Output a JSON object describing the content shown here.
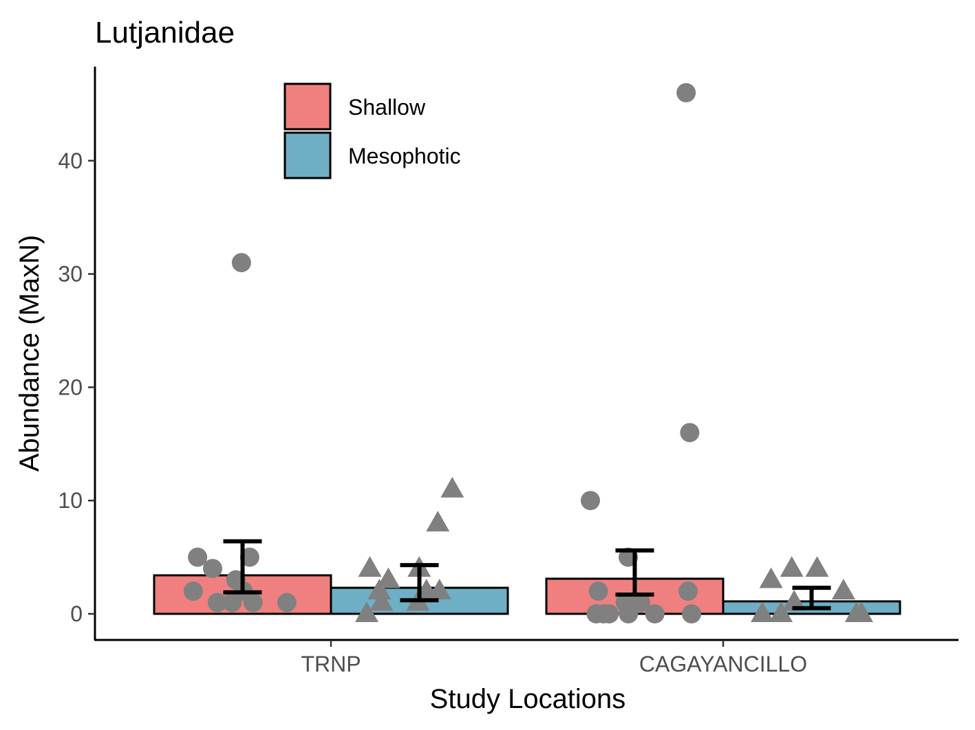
{
  "chart_data": {
    "type": "bar",
    "title": "Lutjanidae",
    "xlabel": "Study Locations",
    "ylabel": "Abundance (MaxN)",
    "categories": [
      "TRNP",
      "CAGAYANCILLO"
    ],
    "ylim": [
      -2.2,
      48
    ],
    "yticks": [
      0,
      10,
      20,
      30,
      40
    ],
    "grid": false,
    "legend_position": "top-left",
    "series": [
      {
        "name": "Shallow",
        "color": "#f08080",
        "marker": "circle",
        "values": [
          3.4,
          3.1
        ],
        "error_low": [
          1.9,
          1.7
        ],
        "error_high": [
          6.4,
          5.6
        ],
        "points": [
          [
            31,
            5,
            5,
            4,
            3,
            2,
            2,
            1,
            1,
            1,
            1
          ],
          [
            46,
            16,
            10,
            5,
            2,
            2,
            1,
            1,
            0,
            0,
            0,
            0,
            0,
            0
          ]
        ]
      },
      {
        "name": "Mesophotic",
        "color": "#6eafc6",
        "marker": "triangle",
        "values": [
          2.3,
          1.1
        ],
        "error_low": [
          1.2,
          0.5
        ],
        "error_high": [
          4.3,
          2.3
        ],
        "points": [
          [
            11,
            8,
            4,
            4,
            3,
            2,
            2,
            2,
            1,
            1,
            0
          ],
          [
            4,
            4,
            3,
            2,
            1,
            1,
            0,
            0,
            0,
            0
          ]
        ]
      }
    ],
    "point_color": "#808080"
  }
}
